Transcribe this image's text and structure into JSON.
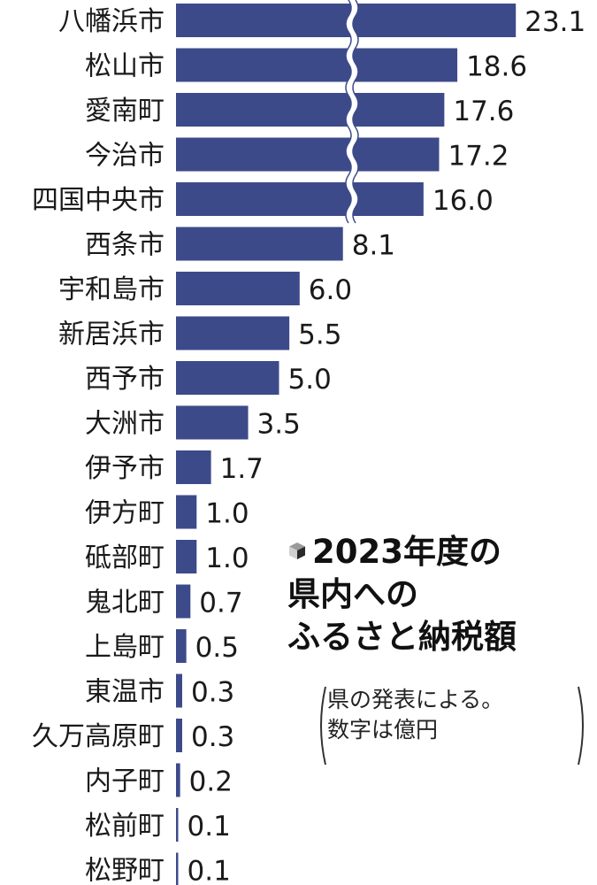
{
  "chart_data": {
    "type": "bar",
    "orientation": "horizontal",
    "axis_break": true,
    "categories": [
      "八幡浜市",
      "松山市",
      "愛南町",
      "今治市",
      "四国中央市",
      "西条市",
      "宇和島市",
      "新居浜市",
      "西予市",
      "大洲市",
      "伊予市",
      "伊方町",
      "砥部町",
      "鬼北町",
      "上島町",
      "東温市",
      "久万高原町",
      "内子町",
      "松前町",
      "松野町"
    ],
    "values": [
      23.1,
      18.6,
      17.6,
      17.2,
      16.0,
      8.1,
      6.0,
      5.5,
      5.0,
      3.5,
      1.7,
      1.0,
      1.0,
      0.7,
      0.5,
      0.3,
      0.3,
      0.2,
      0.1,
      0.1
    ],
    "value_labels": [
      "23.1",
      "18.6",
      "17.6",
      "17.2",
      "16.0",
      "8.1",
      "6.0",
      "5.5",
      "5.0",
      "3.5",
      "1.7",
      "1.0",
      "1.0",
      "0.7",
      "0.5",
      "0.3",
      "0.3",
      "0.2",
      "0.1",
      "0.1"
    ],
    "bar_color": "#3d4a8a"
  },
  "title": {
    "line1": "2023年度の",
    "line2": "県内への",
    "line3": "ふるさと納税額"
  },
  "note": {
    "line1": "県の発表による。",
    "line2": "数字は億円"
  }
}
